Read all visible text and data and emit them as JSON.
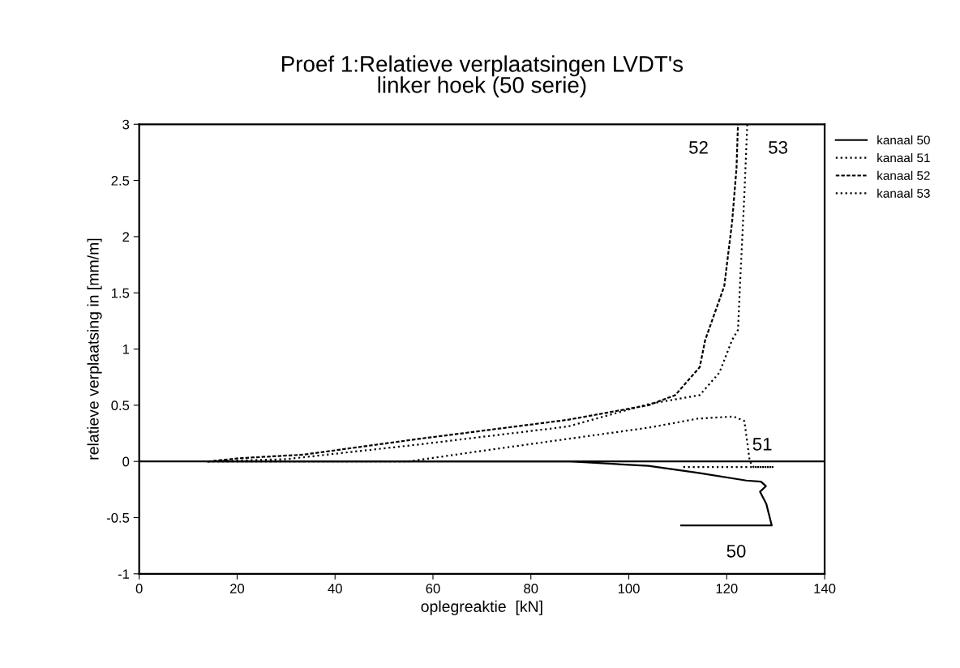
{
  "chart_data": {
    "type": "line",
    "title": "Proef 1:Relatieve verplaatsingen LVDT's\nlinker hoek (50 serie)",
    "xlabel": "oplegreaktie  [kN]",
    "ylabel": "relatieve verplaatsing in [mm/m]",
    "xlim": [
      0,
      140
    ],
    "xticks": [
      0,
      20,
      40,
      60,
      80,
      100,
      120,
      140
    ],
    "ylim": [
      -1,
      3
    ],
    "yticks": [
      -1,
      -0.5,
      0,
      0.5,
      1,
      1.5,
      2,
      2.5,
      3
    ],
    "grid": false,
    "legend": "right",
    "ref_lines": [
      {
        "axis": "y",
        "value": 0,
        "color": "#000000",
        "line_style": "solid"
      }
    ],
    "series": [
      {
        "name": "kanaal 50",
        "color": "#000000",
        "line_style": "solid",
        "x": [
          14,
          88,
          104,
          114,
          124,
          127,
          128,
          126.8,
          128.1,
          129.2,
          110.7
        ],
        "values": [
          0,
          0,
          -0.04,
          -0.1,
          -0.17,
          -0.18,
          -0.22,
          -0.27,
          -0.38,
          -0.57,
          -0.57
        ]
      },
      {
        "name": "kanaal 51",
        "color": "#000000",
        "line_style": "dotted",
        "x": [
          14,
          55,
          71,
          87.5,
          104,
          114,
          121.4,
          123.6,
          124.2,
          124.7,
          125.5,
          129.6,
          110.7
        ],
        "values": [
          0,
          0,
          0.1,
          0.2,
          0.3,
          0.38,
          0.4,
          0.36,
          0.17,
          0,
          -0.05,
          -0.05,
          -0.05
        ]
      },
      {
        "name": "kanaal 52",
        "color": "#000000",
        "line_style": "dashed",
        "x": [
          14,
          21,
          33.5,
          57,
          87.5,
          104,
          109.5,
          114.5,
          115.6,
          119.5,
          121.1,
          122,
          122.3
        ],
        "values": [
          0,
          0.03,
          0.06,
          0.2,
          0.37,
          0.5,
          0.59,
          0.84,
          1.08,
          1.56,
          2.13,
          2.61,
          3
        ]
      },
      {
        "name": "kanaal 53",
        "color": "#000000",
        "line_style": "dotted",
        "x": [
          14,
          30,
          57,
          87.5,
          104,
          114.5,
          118.5,
          121.1,
          122.3,
          122.8,
          123.6,
          124.2
        ],
        "values": [
          0,
          0.02,
          0.15,
          0.31,
          0.51,
          0.59,
          0.79,
          1.08,
          1.17,
          1.65,
          2.37,
          3
        ]
      }
    ],
    "annotations": [
      "52",
      "53",
      "51",
      "50"
    ]
  }
}
